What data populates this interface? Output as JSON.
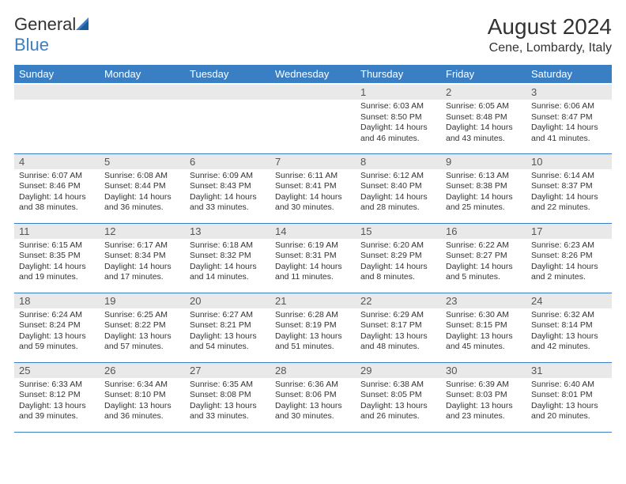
{
  "brand": {
    "text1": "General",
    "text2": "Blue"
  },
  "title": "August 2024",
  "location": "Cene, Lombardy, Italy",
  "colors": {
    "header_bg": "#3a7fc4",
    "header_fg": "#ffffff",
    "daynum_bg": "#e9e9e9",
    "border": "#3a7fc4",
    "page_bg": "#ffffff",
    "text": "#333333"
  },
  "weekdays": [
    "Sunday",
    "Monday",
    "Tuesday",
    "Wednesday",
    "Thursday",
    "Friday",
    "Saturday"
  ],
  "weeks": [
    [
      null,
      null,
      null,
      null,
      {
        "n": "1",
        "sr": "6:03 AM",
        "ss": "8:50 PM",
        "dl": "14 hours and 46 minutes."
      },
      {
        "n": "2",
        "sr": "6:05 AM",
        "ss": "8:48 PM",
        "dl": "14 hours and 43 minutes."
      },
      {
        "n": "3",
        "sr": "6:06 AM",
        "ss": "8:47 PM",
        "dl": "14 hours and 41 minutes."
      }
    ],
    [
      {
        "n": "4",
        "sr": "6:07 AM",
        "ss": "8:46 PM",
        "dl": "14 hours and 38 minutes."
      },
      {
        "n": "5",
        "sr": "6:08 AM",
        "ss": "8:44 PM",
        "dl": "14 hours and 36 minutes."
      },
      {
        "n": "6",
        "sr": "6:09 AM",
        "ss": "8:43 PM",
        "dl": "14 hours and 33 minutes."
      },
      {
        "n": "7",
        "sr": "6:11 AM",
        "ss": "8:41 PM",
        "dl": "14 hours and 30 minutes."
      },
      {
        "n": "8",
        "sr": "6:12 AM",
        "ss": "8:40 PM",
        "dl": "14 hours and 28 minutes."
      },
      {
        "n": "9",
        "sr": "6:13 AM",
        "ss": "8:38 PM",
        "dl": "14 hours and 25 minutes."
      },
      {
        "n": "10",
        "sr": "6:14 AM",
        "ss": "8:37 PM",
        "dl": "14 hours and 22 minutes."
      }
    ],
    [
      {
        "n": "11",
        "sr": "6:15 AM",
        "ss": "8:35 PM",
        "dl": "14 hours and 19 minutes."
      },
      {
        "n": "12",
        "sr": "6:17 AM",
        "ss": "8:34 PM",
        "dl": "14 hours and 17 minutes."
      },
      {
        "n": "13",
        "sr": "6:18 AM",
        "ss": "8:32 PM",
        "dl": "14 hours and 14 minutes."
      },
      {
        "n": "14",
        "sr": "6:19 AM",
        "ss": "8:31 PM",
        "dl": "14 hours and 11 minutes."
      },
      {
        "n": "15",
        "sr": "6:20 AM",
        "ss": "8:29 PM",
        "dl": "14 hours and 8 minutes."
      },
      {
        "n": "16",
        "sr": "6:22 AM",
        "ss": "8:27 PM",
        "dl": "14 hours and 5 minutes."
      },
      {
        "n": "17",
        "sr": "6:23 AM",
        "ss": "8:26 PM",
        "dl": "14 hours and 2 minutes."
      }
    ],
    [
      {
        "n": "18",
        "sr": "6:24 AM",
        "ss": "8:24 PM",
        "dl": "13 hours and 59 minutes."
      },
      {
        "n": "19",
        "sr": "6:25 AM",
        "ss": "8:22 PM",
        "dl": "13 hours and 57 minutes."
      },
      {
        "n": "20",
        "sr": "6:27 AM",
        "ss": "8:21 PM",
        "dl": "13 hours and 54 minutes."
      },
      {
        "n": "21",
        "sr": "6:28 AM",
        "ss": "8:19 PM",
        "dl": "13 hours and 51 minutes."
      },
      {
        "n": "22",
        "sr": "6:29 AM",
        "ss": "8:17 PM",
        "dl": "13 hours and 48 minutes."
      },
      {
        "n": "23",
        "sr": "6:30 AM",
        "ss": "8:15 PM",
        "dl": "13 hours and 45 minutes."
      },
      {
        "n": "24",
        "sr": "6:32 AM",
        "ss": "8:14 PM",
        "dl": "13 hours and 42 minutes."
      }
    ],
    [
      {
        "n": "25",
        "sr": "6:33 AM",
        "ss": "8:12 PM",
        "dl": "13 hours and 39 minutes."
      },
      {
        "n": "26",
        "sr": "6:34 AM",
        "ss": "8:10 PM",
        "dl": "13 hours and 36 minutes."
      },
      {
        "n": "27",
        "sr": "6:35 AM",
        "ss": "8:08 PM",
        "dl": "13 hours and 33 minutes."
      },
      {
        "n": "28",
        "sr": "6:36 AM",
        "ss": "8:06 PM",
        "dl": "13 hours and 30 minutes."
      },
      {
        "n": "29",
        "sr": "6:38 AM",
        "ss": "8:05 PM",
        "dl": "13 hours and 26 minutes."
      },
      {
        "n": "30",
        "sr": "6:39 AM",
        "ss": "8:03 PM",
        "dl": "13 hours and 23 minutes."
      },
      {
        "n": "31",
        "sr": "6:40 AM",
        "ss": "8:01 PM",
        "dl": "13 hours and 20 minutes."
      }
    ]
  ],
  "labels": {
    "sunrise": "Sunrise:",
    "sunset": "Sunset:",
    "daylight": "Daylight:"
  }
}
